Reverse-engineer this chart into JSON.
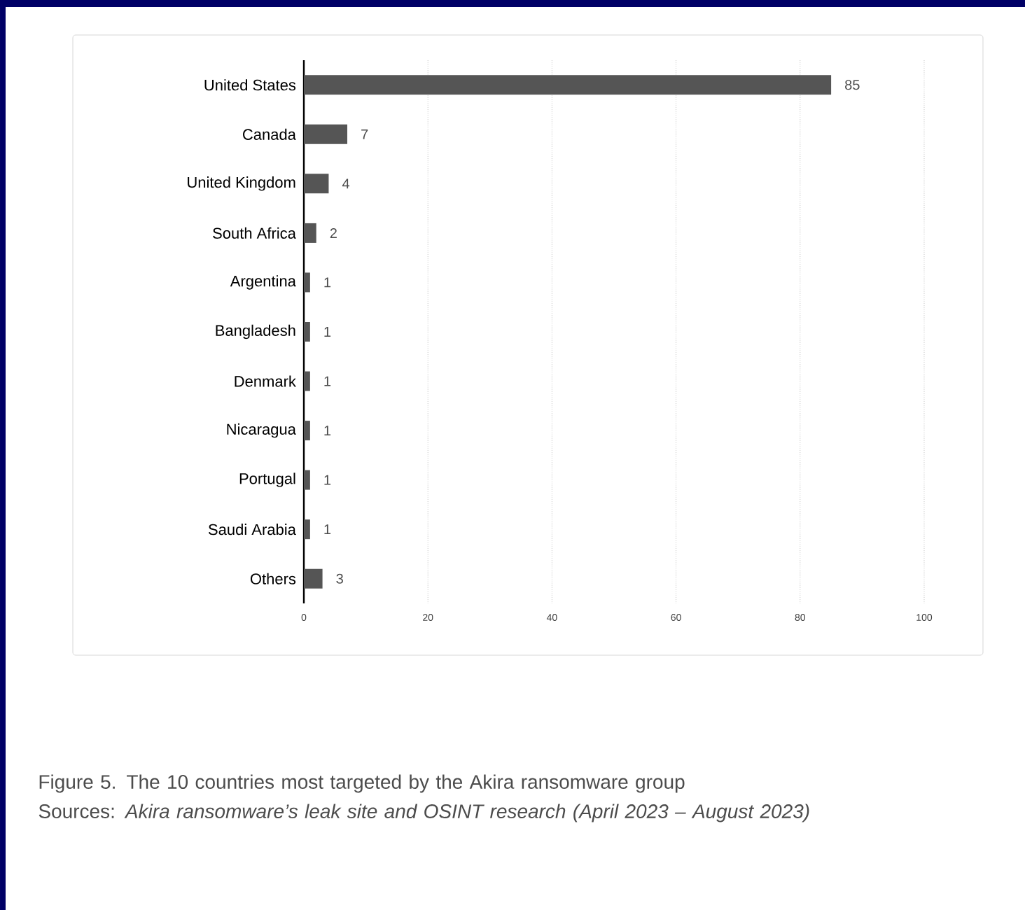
{
  "chart_data": {
    "type": "bar",
    "orientation": "horizontal",
    "categories": [
      "United States",
      "Canada",
      "United Kingdom",
      "South Africa",
      "Argentina",
      "Bangladesh",
      "Denmark",
      "Nicaragua",
      "Portugal",
      "Saudi Arabia",
      "Others"
    ],
    "values": [
      85,
      7,
      4,
      2,
      1,
      1,
      1,
      1,
      1,
      1,
      3
    ],
    "color": "#555555",
    "xlim": [
      0,
      100
    ],
    "xticks": [
      0,
      20,
      40,
      60,
      80,
      100
    ],
    "grid": "x",
    "data_labels": true,
    "annotations": [
      "Figure 5. The 10 countries most targeted by the Akira ransomware group",
      "Sources: *Akira ransomware’s leak site and OSINT research (April 2023 – August 2023)*"
    ]
  }
}
